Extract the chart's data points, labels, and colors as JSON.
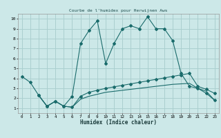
{
  "title": "Courbe de l'humidex pour Herwijnen Aws",
  "xlabel": "Humidex (Indice chaleur)",
  "bg_color": "#cce8e8",
  "grid_color": "#aacfcf",
  "line_color": "#1a6b6b",
  "xlim": [
    -0.5,
    23.5
  ],
  "ylim": [
    0.5,
    10.5
  ],
  "xticks": [
    0,
    1,
    2,
    3,
    4,
    5,
    6,
    7,
    8,
    9,
    10,
    11,
    12,
    13,
    14,
    15,
    16,
    17,
    18,
    19,
    20,
    21,
    22,
    23
  ],
  "yticks": [
    1,
    2,
    3,
    4,
    5,
    6,
    7,
    8,
    9,
    10
  ],
  "line1_x": [
    0,
    1,
    2,
    3,
    4,
    5,
    6,
    7,
    8,
    9,
    10,
    11,
    12,
    13,
    14,
    15,
    16,
    17,
    18,
    19,
    20,
    21,
    22,
    23
  ],
  "line1_y": [
    4.2,
    3.6,
    2.3,
    1.2,
    1.7,
    1.2,
    2.2,
    7.5,
    8.8,
    9.8,
    5.5,
    7.5,
    9.0,
    9.3,
    9.0,
    10.2,
    9.0,
    9.0,
    7.8,
    4.5,
    3.2,
    3.0,
    2.5,
    1.8
  ],
  "line2_x": [
    2,
    3,
    4,
    5,
    6,
    7,
    8,
    9,
    10,
    11,
    12,
    13,
    14,
    15,
    16,
    17,
    18,
    19,
    20,
    21,
    22,
    23
  ],
  "line2_y": [
    2.3,
    1.2,
    1.7,
    1.2,
    1.1,
    2.2,
    2.6,
    2.8,
    3.0,
    3.15,
    3.3,
    3.45,
    3.6,
    3.75,
    3.9,
    4.05,
    4.2,
    4.35,
    4.5,
    3.2,
    2.9,
    2.5
  ],
  "line3_x": [
    2,
    3,
    4,
    5,
    6,
    7,
    8,
    9,
    10,
    11,
    12,
    13,
    14,
    15,
    16,
    17,
    18,
    19,
    20,
    21,
    22,
    23
  ],
  "line3_y": [
    2.3,
    1.2,
    1.7,
    1.2,
    1.1,
    1.9,
    2.2,
    2.4,
    2.6,
    2.7,
    2.8,
    2.9,
    3.0,
    3.1,
    3.2,
    3.3,
    3.4,
    3.45,
    3.5,
    3.0,
    2.7,
    1.8
  ]
}
